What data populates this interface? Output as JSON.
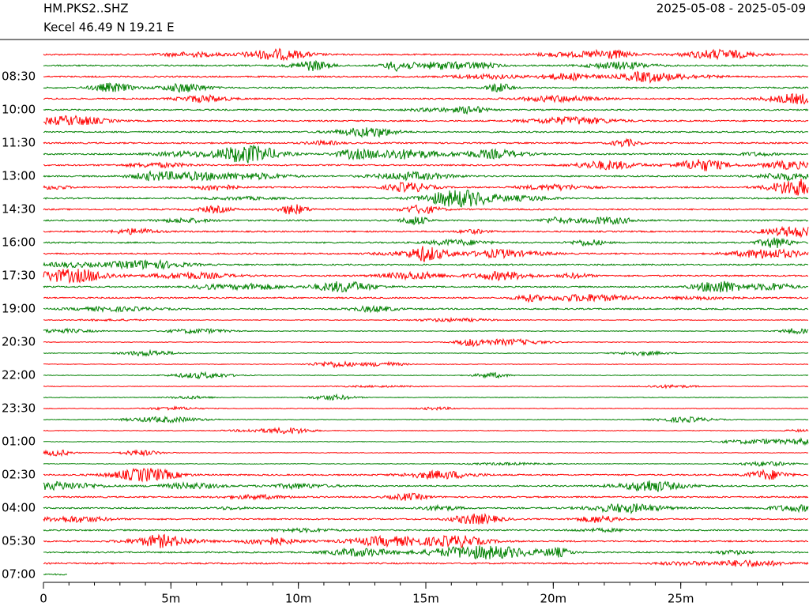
{
  "chart_data": {
    "type": "helicorder",
    "title": "HM.PKS2..SHZ",
    "subtitle": "Kecel  46.49 N 19.21 E",
    "date_range": "2025-05-08 - 2025-05-09",
    "row_labels": [
      "08:30",
      "10:00",
      "11:30",
      "13:00",
      "14:30",
      "16:00",
      "17:30",
      "19:00",
      "20:30",
      "22:00",
      "23:30",
      "01:00",
      "02:30",
      "04:00",
      "05:30",
      "07:00"
    ],
    "xlim": [
      0,
      30
    ],
    "xticks": [
      0,
      {
        "value": 5,
        "label": "5m"
      },
      {
        "value": 10,
        "label": "10m"
      },
      {
        "value": 15,
        "label": "15m"
      },
      {
        "value": 20,
        "label": "20m"
      },
      {
        "value": 25,
        "label": "25m"
      }
    ],
    "colors": [
      "#ff0000",
      "#008000"
    ]
  }
}
